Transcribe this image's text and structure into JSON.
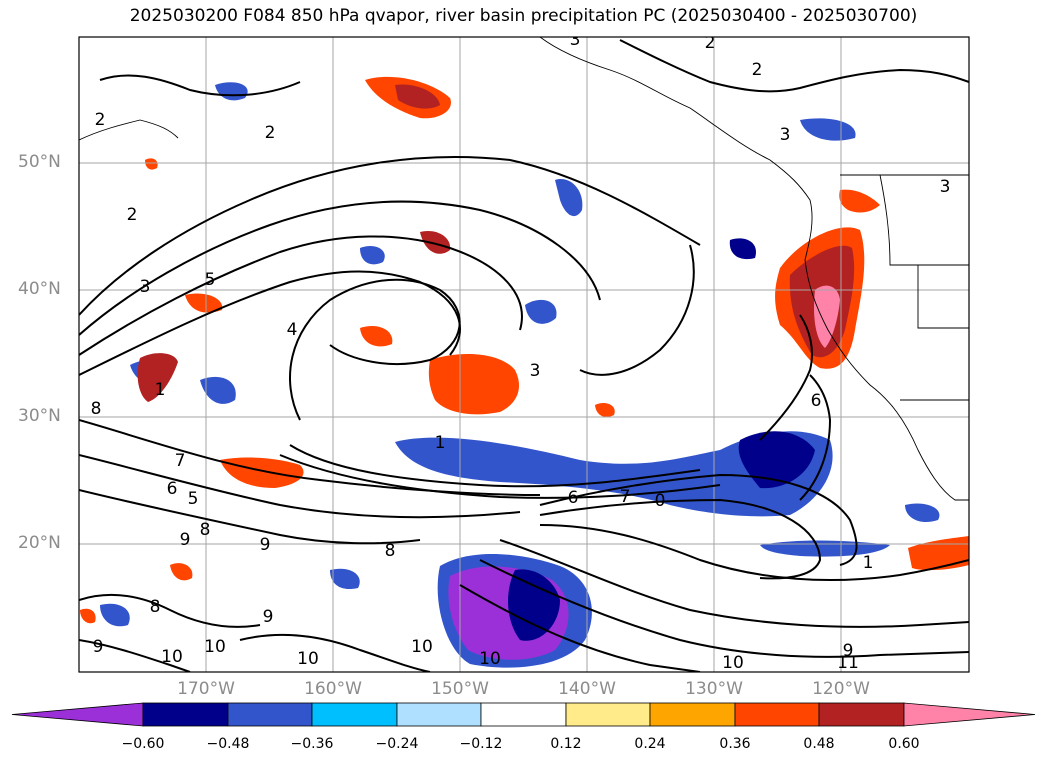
{
  "title": "2025030200 F084 850 hPa qvapor, river basin precipitation PC (2025030400 - 2025030700)",
  "latitude_labels": [
    "50°N",
    "40°N",
    "30°N",
    "20°N"
  ],
  "longitude_labels": [
    "170°W",
    "160°W",
    "150°W",
    "140°W",
    "130°W",
    "120°W"
  ],
  "colorbar": {
    "colors": [
      "#9b30d9",
      "#00008b",
      "#3355cc",
      "#00bfff",
      "#b0e0ff",
      "#ffffff",
      "#ffeb8a",
      "#ffa500",
      "#ff4500",
      "#b22222",
      "#ff82a9"
    ],
    "tick_labels": [
      "−0.60",
      "−0.48",
      "−0.36",
      "−0.24",
      "−0.12",
      "0.12",
      "0.24",
      "0.36",
      "0.48",
      "0.60"
    ]
  },
  "contour_labels": [
    "2",
    "2",
    "2",
    "2",
    "3",
    "3",
    "4",
    "5",
    "3",
    "1",
    "7",
    "6",
    "5",
    "8",
    "8",
    "9",
    "9",
    "8",
    "9",
    "9",
    "10",
    "10",
    "10",
    "10",
    "10",
    "10",
    "11",
    "9",
    "1",
    "0",
    "6",
    "6",
    "7",
    "3",
    "8",
    "1",
    "2",
    "3"
  ]
}
